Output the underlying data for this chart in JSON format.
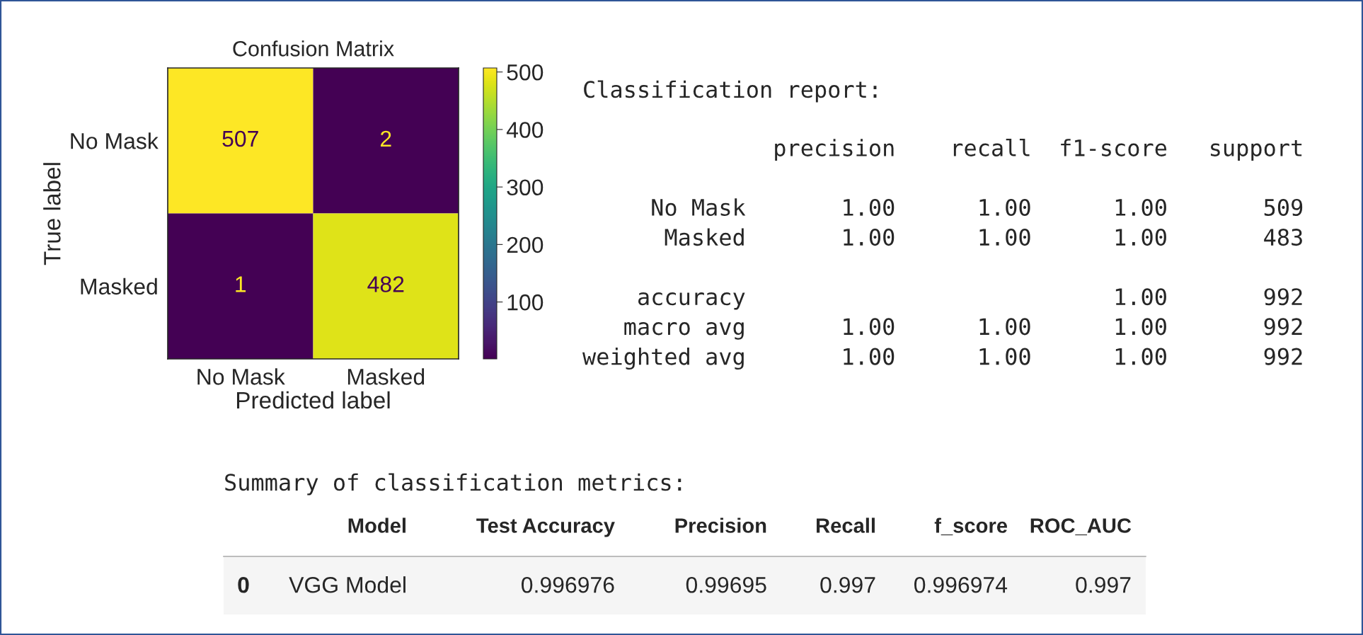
{
  "chart_data": [
    {
      "type": "heatmap",
      "title": "Confusion Matrix",
      "xlabel": "Predicted label",
      "ylabel": "True label",
      "categories": [
        "No Mask",
        "Masked"
      ],
      "y_categories": [
        "No Mask",
        "Masked"
      ],
      "cells": [
        [
          507,
          2
        ],
        [
          1,
          482
        ]
      ],
      "clim": [
        1,
        507
      ],
      "cticks": [
        100,
        200,
        300,
        400,
        500
      ],
      "data_labels": true
    },
    {
      "type": "other",
      "title": "Classification report:",
      "annotations": [
        "              precision    recall  f1-score   support\n\n     No Mask       1.00      1.00      1.00       509\n      Masked       1.00      1.00      1.00       483\n\n    accuracy                           1.00       992\n   macro avg       1.00      1.00      1.00       992\nweighted avg       1.00      1.00      1.00       992"
      ]
    },
    {
      "type": "other",
      "title": "Summary of classification metrics:",
      "categories": [
        "Model",
        "Test Accuracy",
        "Precision",
        "Recall",
        "f_score",
        "ROC_AUC"
      ],
      "y_categories": [
        "0"
      ],
      "cells": [
        [
          "VGG Model",
          "0.996976",
          "0.99695",
          "0.997",
          "0.996974",
          "0.997"
        ]
      ]
    }
  ]
}
